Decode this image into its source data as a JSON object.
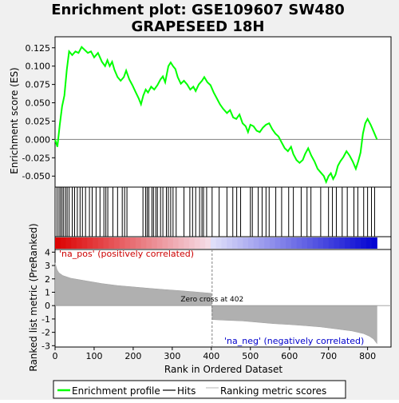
{
  "chart_data": {
    "type": "line",
    "title_line1": "Enrichment plot: GSE109607 SW480",
    "title_line2": "GRAPESEED 18H",
    "panels": {
      "enrichment": {
        "ylabel": "Enrichment score (ES)",
        "ylim": [
          -0.065,
          0.14
        ],
        "yticks": [
          -0.05,
          -0.025,
          0.0,
          0.025,
          0.05,
          0.075,
          0.1,
          0.125
        ],
        "ytick_labels": [
          "-0.050",
          "-0.025",
          "0.000",
          "0.025",
          "0.050",
          "0.075",
          "0.100",
          "0.125"
        ],
        "curve_color": "#00ff00",
        "points": [
          [
            0,
            0.0
          ],
          [
            6,
            -0.01
          ],
          [
            12,
            0.02
          ],
          [
            18,
            0.045
          ],
          [
            24,
            0.06
          ],
          [
            30,
            0.095
          ],
          [
            36,
            0.12
          ],
          [
            44,
            0.115
          ],
          [
            52,
            0.12
          ],
          [
            60,
            0.118
          ],
          [
            68,
            0.126
          ],
          [
            76,
            0.122
          ],
          [
            84,
            0.118
          ],
          [
            92,
            0.12
          ],
          [
            100,
            0.112
          ],
          [
            110,
            0.118
          ],
          [
            120,
            0.106
          ],
          [
            128,
            0.1
          ],
          [
            134,
            0.108
          ],
          [
            140,
            0.1
          ],
          [
            146,
            0.106
          ],
          [
            152,
            0.095
          ],
          [
            160,
            0.085
          ],
          [
            168,
            0.08
          ],
          [
            176,
            0.085
          ],
          [
            182,
            0.094
          ],
          [
            190,
            0.082
          ],
          [
            198,
            0.074
          ],
          [
            206,
            0.065
          ],
          [
            214,
            0.056
          ],
          [
            220,
            0.048
          ],
          [
            226,
            0.06
          ],
          [
            232,
            0.068
          ],
          [
            238,
            0.064
          ],
          [
            246,
            0.072
          ],
          [
            254,
            0.068
          ],
          [
            262,
            0.074
          ],
          [
            270,
            0.082
          ],
          [
            276,
            0.086
          ],
          [
            282,
            0.078
          ],
          [
            290,
            0.1
          ],
          [
            296,
            0.105
          ],
          [
            302,
            0.1
          ],
          [
            308,
            0.096
          ],
          [
            314,
            0.085
          ],
          [
            322,
            0.076
          ],
          [
            330,
            0.08
          ],
          [
            338,
            0.075
          ],
          [
            346,
            0.068
          ],
          [
            354,
            0.072
          ],
          [
            360,
            0.066
          ],
          [
            368,
            0.075
          ],
          [
            376,
            0.08
          ],
          [
            382,
            0.085
          ],
          [
            390,
            0.078
          ],
          [
            398,
            0.074
          ],
          [
            406,
            0.064
          ],
          [
            414,
            0.056
          ],
          [
            422,
            0.048
          ],
          [
            430,
            0.042
          ],
          [
            440,
            0.036
          ],
          [
            448,
            0.04
          ],
          [
            456,
            0.03
          ],
          [
            464,
            0.028
          ],
          [
            472,
            0.034
          ],
          [
            480,
            0.022
          ],
          [
            488,
            0.018
          ],
          [
            494,
            0.01
          ],
          [
            500,
            0.02
          ],
          [
            508,
            0.018
          ],
          [
            516,
            0.012
          ],
          [
            524,
            0.01
          ],
          [
            532,
            0.016
          ],
          [
            540,
            0.02
          ],
          [
            548,
            0.022
          ],
          [
            556,
            0.014
          ],
          [
            564,
            0.008
          ],
          [
            572,
            0.004
          ],
          [
            580,
            -0.004
          ],
          [
            588,
            -0.012
          ],
          [
            596,
            -0.016
          ],
          [
            604,
            -0.01
          ],
          [
            610,
            -0.02
          ],
          [
            618,
            -0.028
          ],
          [
            626,
            -0.032
          ],
          [
            634,
            -0.028
          ],
          [
            640,
            -0.02
          ],
          [
            648,
            -0.012
          ],
          [
            656,
            -0.022
          ],
          [
            664,
            -0.03
          ],
          [
            672,
            -0.04
          ],
          [
            680,
            -0.045
          ],
          [
            688,
            -0.05
          ],
          [
            694,
            -0.058
          ],
          [
            700,
            -0.05
          ],
          [
            706,
            -0.046
          ],
          [
            712,
            -0.054
          ],
          [
            718,
            -0.048
          ],
          [
            724,
            -0.036
          ],
          [
            730,
            -0.03
          ],
          [
            738,
            -0.024
          ],
          [
            746,
            -0.016
          ],
          [
            754,
            -0.022
          ],
          [
            762,
            -0.03
          ],
          [
            770,
            -0.04
          ],
          [
            776,
            -0.03
          ],
          [
            782,
            -0.018
          ],
          [
            788,
            0.008
          ],
          [
            794,
            0.022
          ],
          [
            800,
            0.028
          ],
          [
            808,
            0.02
          ],
          [
            816,
            0.01
          ],
          [
            824,
            0.0
          ]
        ],
        "hits": [
          5,
          10,
          14,
          18,
          22,
          27,
          31,
          36,
          44,
          50,
          57,
          64,
          70,
          78,
          88,
          95,
          105,
          115,
          125,
          130,
          135,
          148,
          160,
          172,
          178,
          184,
          225,
          232,
          236,
          240,
          248,
          252,
          258,
          262,
          270,
          276,
          285,
          290,
          296,
          302,
          310,
          330,
          345,
          352,
          360,
          370,
          376,
          380,
          388,
          402,
          420,
          440,
          455,
          465,
          475,
          500,
          505,
          520,
          530,
          540,
          548,
          565,
          580,
          598,
          610,
          630,
          645,
          655,
          680,
          700,
          710,
          720,
          735,
          748,
          765,
          775,
          790,
          800,
          810,
          818
        ]
      },
      "ranked": {
        "ylabel": "Ranked list metric (PreRanked)",
        "xlabel": "Rank in Ordered Dataset",
        "ylim": [
          -3.1,
          4.2
        ],
        "yticks": [
          -3,
          -2,
          -1,
          0,
          1,
          2,
          3,
          4
        ],
        "xticks": [
          0,
          100,
          200,
          300,
          400,
          500,
          600,
          700,
          800
        ],
        "xlim": [
          0,
          860
        ],
        "n_genes": 824,
        "zero_cross_rank": 402,
        "zero_cross_label": "Zero cross at 402",
        "pos_label": "'na_pos' (positively correlated)",
        "neg_label": "'na_neg' (negatively correlated)",
        "metric_profile": [
          [
            0,
            3.2
          ],
          [
            5,
            2.7
          ],
          [
            10,
            2.45
          ],
          [
            20,
            2.25
          ],
          [
            40,
            2.05
          ],
          [
            80,
            1.85
          ],
          [
            120,
            1.65
          ],
          [
            160,
            1.5
          ],
          [
            200,
            1.4
          ],
          [
            240,
            1.3
          ],
          [
            280,
            1.2
          ],
          [
            320,
            1.12
          ],
          [
            360,
            1.02
          ],
          [
            400,
            0.92
          ],
          [
            402,
            -1.05
          ],
          [
            440,
            -1.1
          ],
          [
            480,
            -1.15
          ],
          [
            520,
            -1.25
          ],
          [
            560,
            -1.35
          ],
          [
            600,
            -1.42
          ],
          [
            640,
            -1.5
          ],
          [
            680,
            -1.6
          ],
          [
            720,
            -1.75
          ],
          [
            760,
            -1.9
          ],
          [
            790,
            -2.1
          ],
          [
            805,
            -2.3
          ],
          [
            815,
            -2.5
          ],
          [
            824,
            -2.85
          ]
        ]
      }
    },
    "legend": {
      "entries": [
        {
          "label": "Enrichment profile",
          "color": "#00ff00"
        },
        {
          "label": "Hits",
          "color": "#000000"
        },
        {
          "label": "Ranking metric scores",
          "color": "#c0c0c0"
        }
      ]
    }
  }
}
